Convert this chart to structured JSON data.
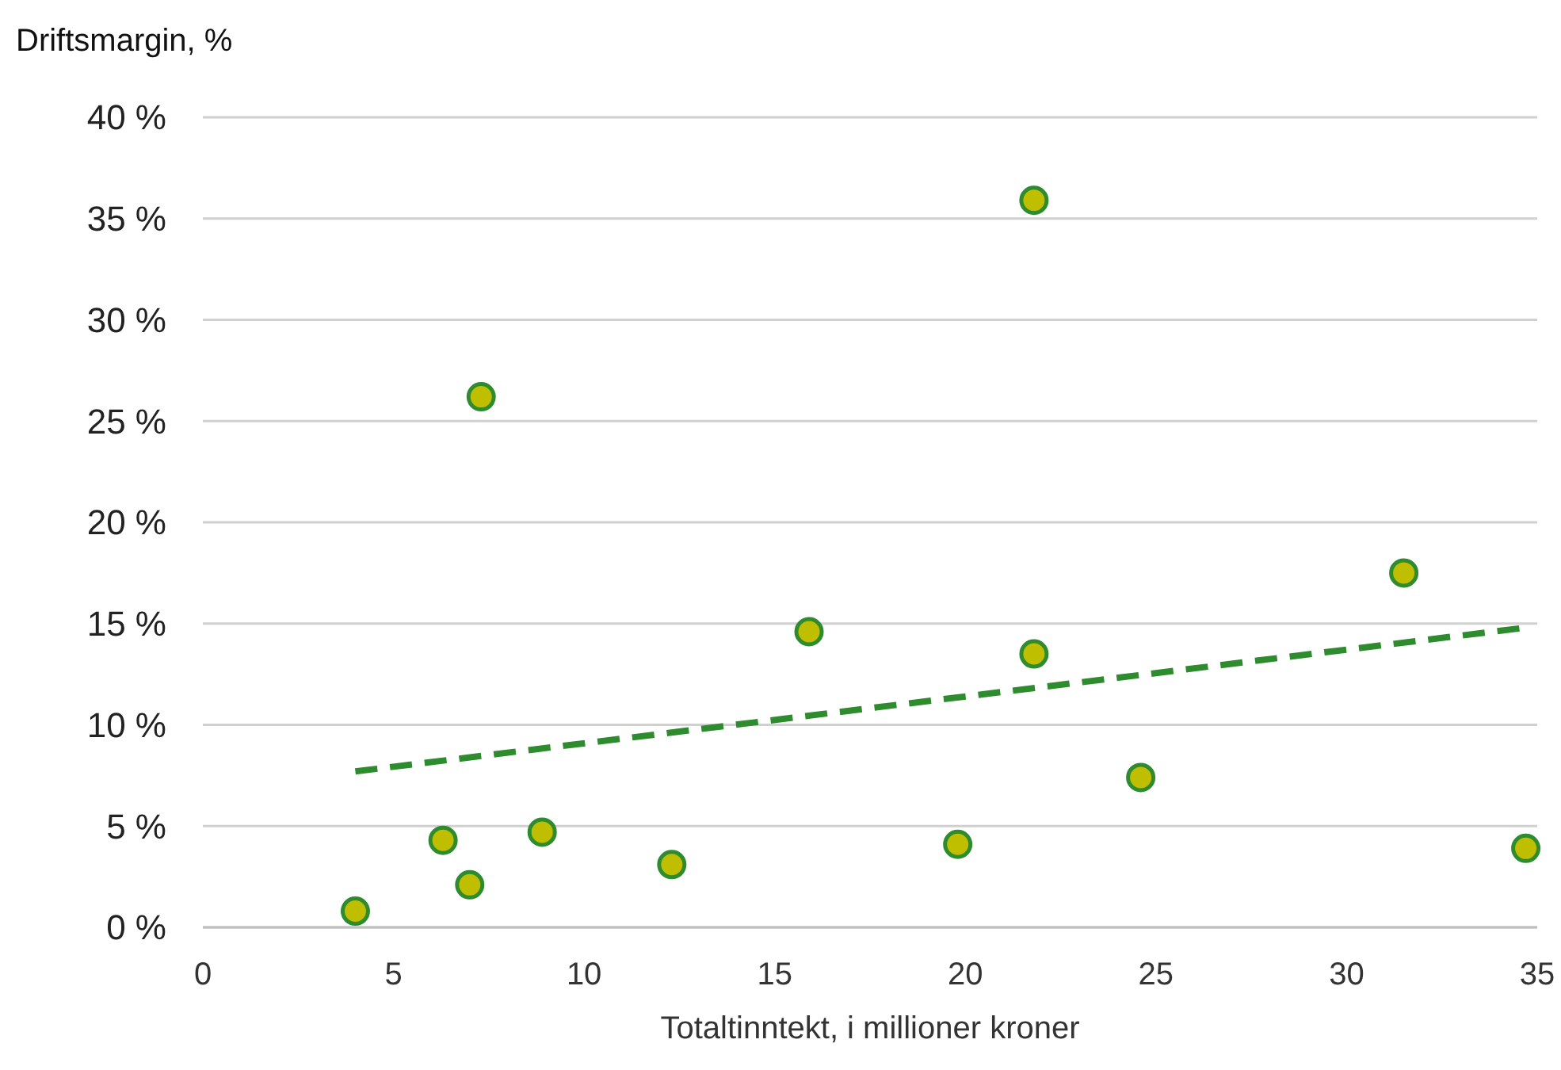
{
  "chart_data": {
    "type": "scatter",
    "xlabel": "Totaltinntekt, i millioner kroner",
    "ylabel": "Driftsmargin, %",
    "series": [
      {
        "color": "#bfbf00",
        "marker": "circle",
        "x": [
          4.0,
          6.3,
          7.0,
          7.3,
          8.9,
          12.3,
          15.9,
          19.8,
          21.8,
          21.8,
          24.6,
          31.5,
          34.7
        ],
        "values": [
          0.8,
          4.3,
          2.1,
          26.2,
          4.7,
          3.1,
          14.6,
          4.1,
          35.9,
          13.5,
          7.4,
          17.5,
          3.9
        ]
      },
      {
        "type": "line",
        "color": "#2e8b2e",
        "line_style": "dashed",
        "x": [
          4.0,
          34.7
        ],
        "values": [
          7.7,
          14.8
        ]
      }
    ],
    "xlim": [
      0,
      35
    ],
    "xticks": [
      0,
      5,
      10,
      15,
      20,
      25,
      30,
      35
    ],
    "ylim": [
      0,
      40
    ],
    "yticks": [
      {
        "value": 0,
        "label": "0 %"
      },
      {
        "value": 5,
        "label": "5 %"
      },
      {
        "value": 10,
        "label": "10 %"
      },
      {
        "value": 15,
        "label": "15 %"
      },
      {
        "value": 20,
        "label": "20 %"
      },
      {
        "value": 25,
        "label": "25 %"
      },
      {
        "value": 30,
        "label": "30 %"
      },
      {
        "value": 35,
        "label": "35 %"
      },
      {
        "value": 40,
        "label": "40 %"
      }
    ],
    "grid": "y"
  }
}
